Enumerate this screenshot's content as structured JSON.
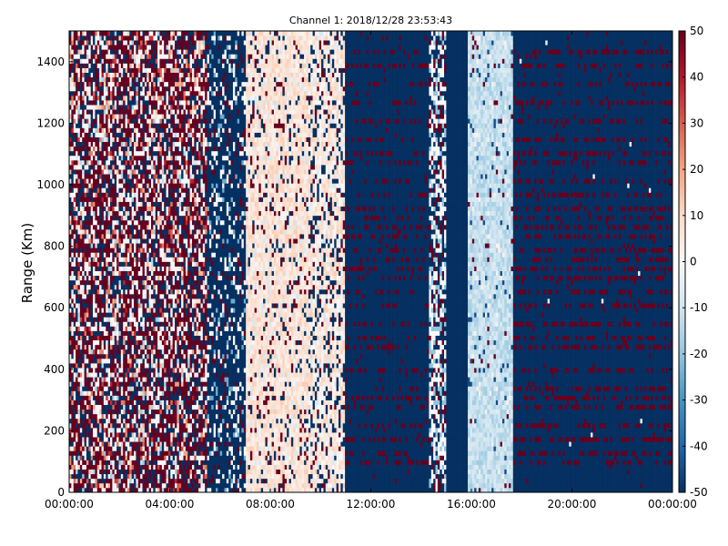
{
  "chart_data": {
    "type": "heatmap",
    "title": "Channel 1: 2018/12/28 23:53:43",
    "xlabel": "",
    "ylabel": "Range (Km)",
    "xlim": [
      "00:00:00",
      "24:00:00"
    ],
    "ylim": [
      0,
      1500
    ],
    "x_ticks": [
      "00:00:00",
      "04:00:00",
      "08:00:00",
      "12:00:00",
      "16:00:00",
      "20:00:00",
      "00:00:00"
    ],
    "y_ticks": [
      0,
      200,
      400,
      600,
      800,
      1000,
      1200,
      1400
    ],
    "colorbar": {
      "colormap": "RdBu_r",
      "range": [
        -50,
        50
      ],
      "ticks": [
        50,
        40,
        30,
        20,
        10,
        0,
        -10,
        -20,
        -30,
        -40,
        -50
      ],
      "color_min": "#053061",
      "color_max": "#67001f"
    },
    "segments": [
      {
        "start": "00:00:00",
        "end": "05:30:00",
        "pattern": "noisy mix of saturated red, white and blue"
      },
      {
        "start": "05:30:00",
        "end": "07:00:00",
        "pattern": "mostly dark blue with scattered white and red"
      },
      {
        "start": "07:00:00",
        "end": "11:00:00",
        "pattern": "light pink near 0 to 15, with red/blue speckle"
      },
      {
        "start": "11:00:00",
        "end": "14:20:00",
        "pattern": "dark blue (-50) with sparse red horizontal streaks"
      },
      {
        "start": "14:20:00",
        "end": "15:00:00",
        "pattern": "mixed white, blue and red"
      },
      {
        "start": "15:00:00",
        "end": "15:50:00",
        "pattern": "dark blue (-50)"
      },
      {
        "start": "15:50:00",
        "end": "17:40:00",
        "pattern": "light blue / white (about -5 to -15)"
      },
      {
        "start": "17:40:00",
        "end": "24:00:00",
        "pattern": "dark blue (-50) with red horizontal streaks"
      }
    ]
  }
}
